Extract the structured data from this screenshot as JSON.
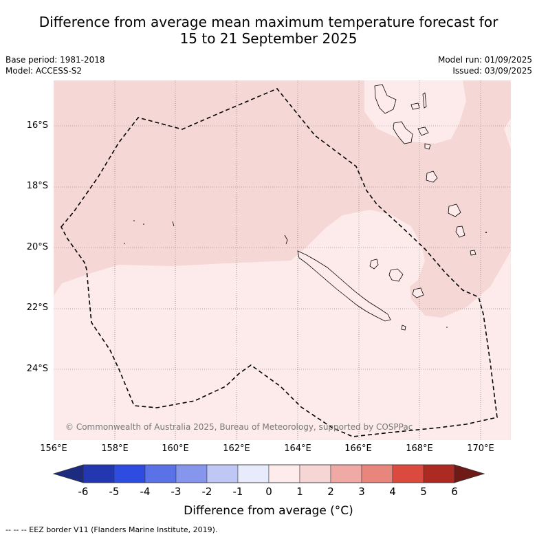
{
  "title_line1": "Difference from average mean maximum temperature forecast for",
  "title_line2": "15 to 21 September 2025",
  "base_period": "Base period: 1981-2018",
  "model": "Model: ACCESS-S2",
  "model_run": "Model run: 01/09/2025",
  "issued": "Issued: 03/09/2025",
  "lat_ticks": [
    "16°S",
    "18°S",
    "20°S",
    "22°S",
    "24°S"
  ],
  "lon_ticks": [
    "156°E",
    "158°E",
    "160°E",
    "162°E",
    "164°E",
    "166°E",
    "168°E",
    "170°E"
  ],
  "copyright": "© Commonwealth of Australia 2025, Bureau of Meteorology, supported by COSPPac",
  "colorbar": {
    "labels": [
      "-6",
      "-5",
      "-4",
      "-3",
      "-2",
      "-1",
      "0",
      "1",
      "2",
      "3",
      "4",
      "5",
      "6"
    ],
    "colors": [
      "#1c2b7f",
      "#2338b0",
      "#2f4ce0",
      "#5b72e6",
      "#8596ec",
      "#bfc7f5",
      "#e8ebfb",
      "#fdeceb",
      "#f6d6d5",
      "#efaaa6",
      "#e8857d",
      "#db4a3e",
      "#ad2a22",
      "#6e1a16"
    ],
    "title": "Difference from average (°C)"
  },
  "footer": "--  --  -- EEZ border V11 (Flanders Marine Institute, 2019).",
  "map": {
    "colors": {
      "zone_1_2": "#f5d7d6",
      "zone_0_1": "#fcebea",
      "land_edge": "#000000",
      "eez": "#000000"
    }
  }
}
